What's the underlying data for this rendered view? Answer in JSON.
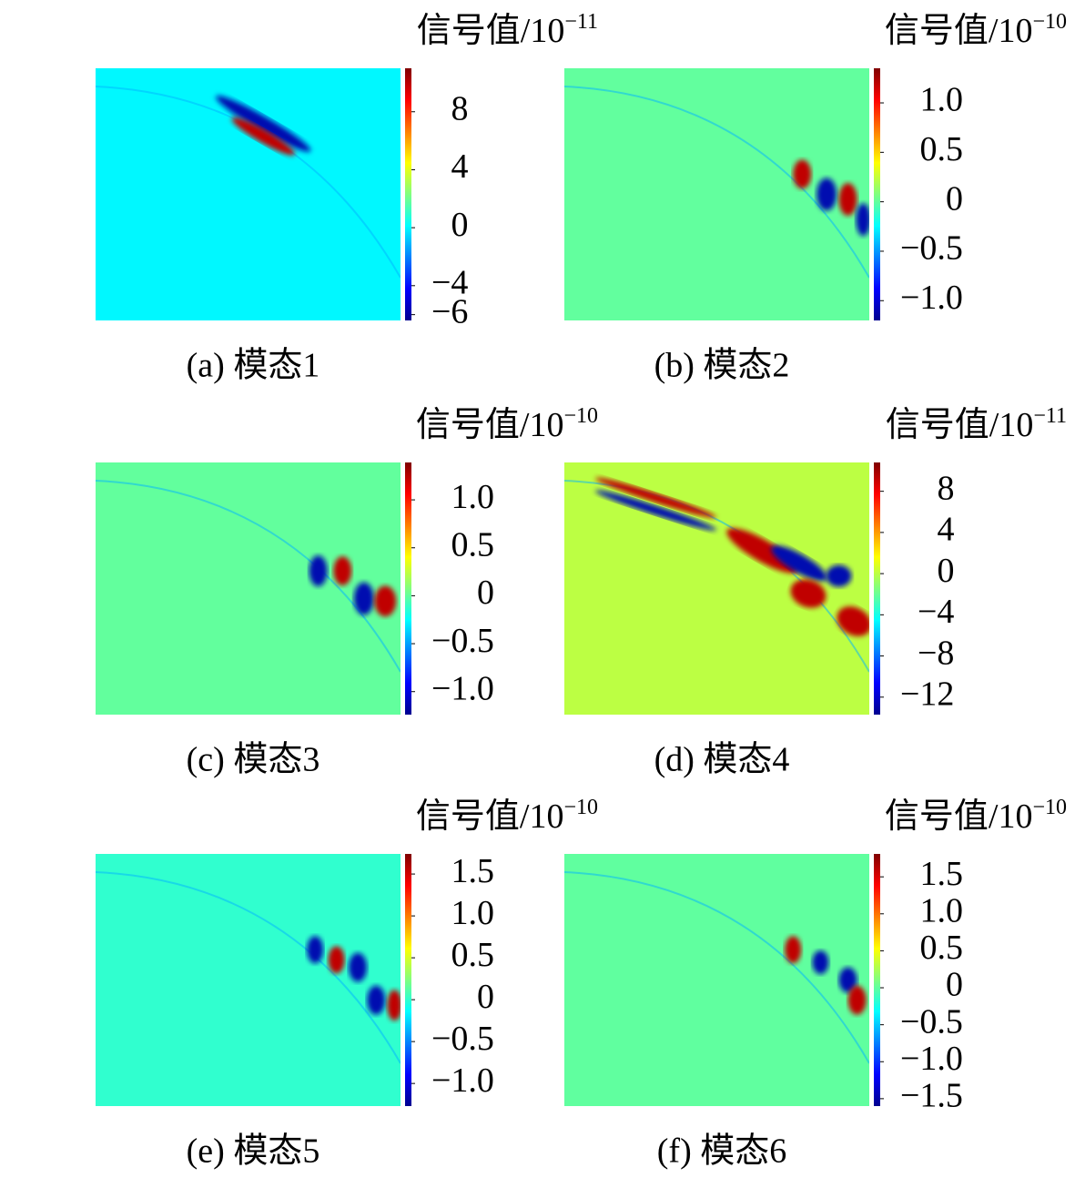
{
  "chart_data": [
    {
      "type": "heatmap",
      "title": "(a) 模态1",
      "colorbar_label": "信号值/10",
      "colorbar_exponent": "−11",
      "colormap": "jet",
      "clim": [
        -6.4,
        11
      ],
      "cticks": [
        8,
        4,
        0,
        {
          "value": -4,
          "label": "−4"
        },
        {
          "value": -6,
          "label": "−6"
        }
      ]
    },
    {
      "type": "heatmap",
      "title": "(b) 模态2",
      "colorbar_label": "信号值/10",
      "colorbar_exponent": "−10",
      "colormap": "jet",
      "clim": [
        -1.2,
        1.35
      ],
      "cticks": [
        {
          "value": 1,
          "label": "1.0"
        },
        0.5,
        0,
        {
          "value": -0.5,
          "label": "−0.5"
        },
        {
          "value": -1,
          "label": "−1.0"
        }
      ]
    },
    {
      "type": "heatmap",
      "title": "(c) 模态3",
      "colorbar_label": "信号值/10",
      "colorbar_exponent": "−10",
      "colormap": "jet",
      "clim": [
        -1.24,
        1.39
      ],
      "cticks": [
        {
          "value": 1,
          "label": "1.0"
        },
        0.5,
        0,
        {
          "value": -0.5,
          "label": "−0.5"
        },
        {
          "value": -1,
          "label": "−1.0"
        }
      ]
    },
    {
      "type": "heatmap",
      "title": "(d) 模态4",
      "colorbar_label": "信号值/10",
      "colorbar_exponent": "−11",
      "colormap": "jet",
      "clim": [
        -13.7,
        10.8
      ],
      "cticks": [
        8,
        4,
        0,
        {
          "value": -4,
          "label": "−4"
        },
        {
          "value": -8,
          "label": "−8"
        },
        {
          "value": -12,
          "label": "−12"
        }
      ]
    },
    {
      "type": "heatmap",
      "title": "(e) 模态5",
      "colorbar_label": "信号值/10",
      "colorbar_exponent": "−10",
      "colormap": "jet",
      "clim": [
        -1.27,
        1.74
      ],
      "cticks": [
        1.5,
        {
          "value": 1,
          "label": "1.0"
        },
        0.5,
        0,
        {
          "value": -0.5,
          "label": "−0.5"
        },
        {
          "value": -1,
          "label": "−1.0"
        }
      ]
    },
    {
      "type": "heatmap",
      "title": "(f) 模态6",
      "colorbar_label": "信号值/10",
      "colorbar_exponent": "−10",
      "colormap": "jet",
      "clim": [
        -1.6,
        1.81
      ],
      "cticks": [
        1.5,
        {
          "value": 1,
          "label": "1.0"
        },
        0.5,
        0,
        {
          "value": -0.5,
          "label": "−0.5"
        },
        {
          "value": -1,
          "label": "−1.0"
        },
        {
          "value": -1.5,
          "label": "−1.5"
        }
      ]
    }
  ]
}
